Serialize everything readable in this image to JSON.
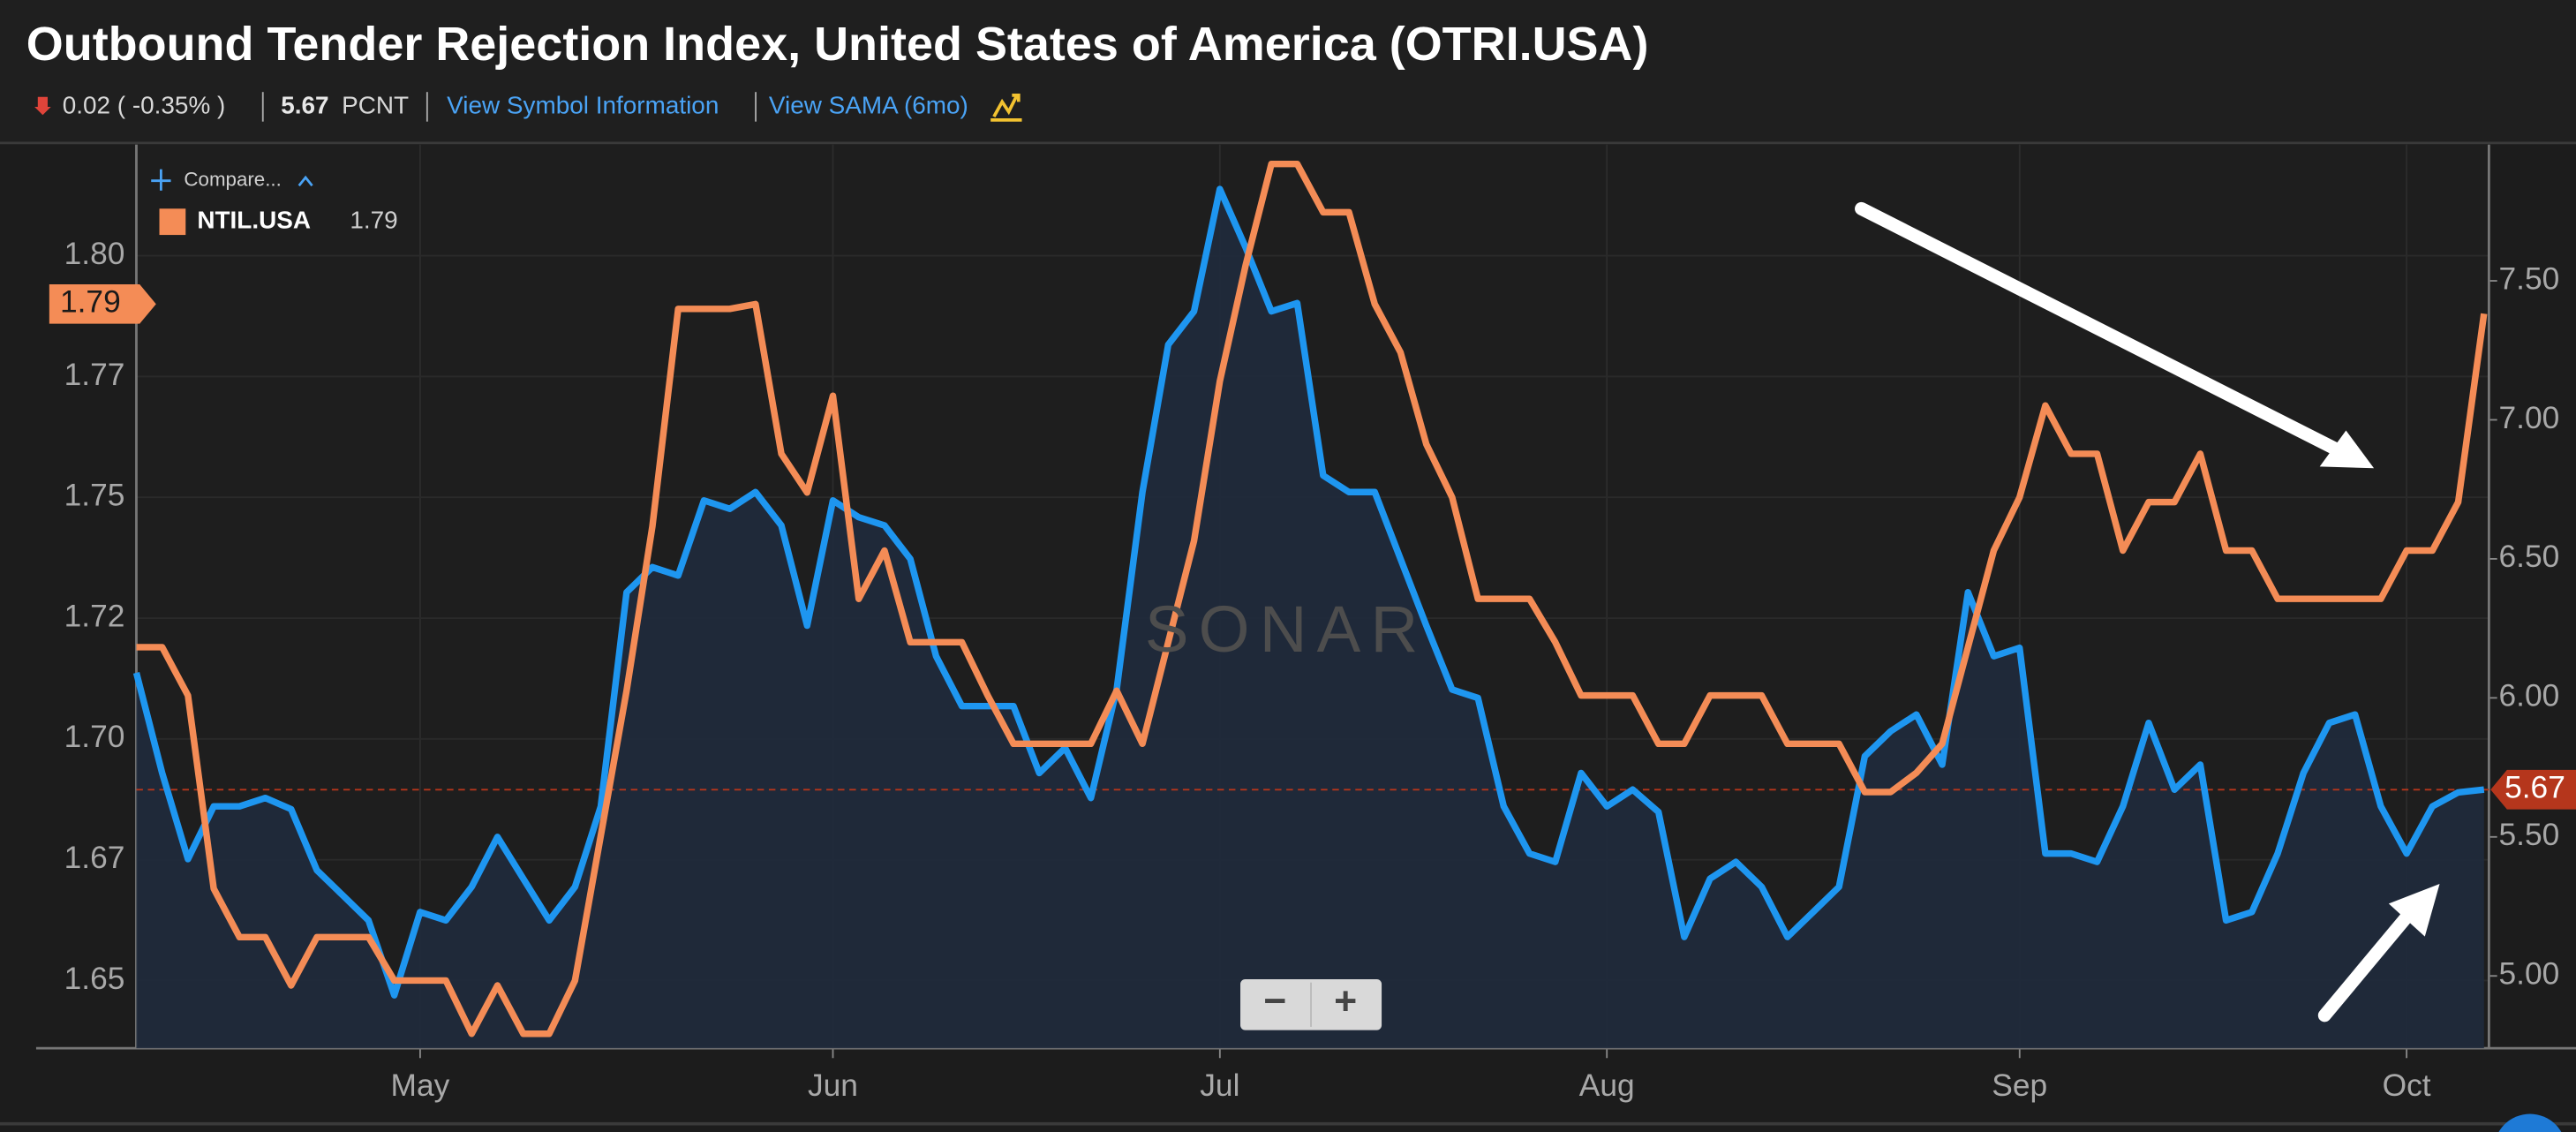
{
  "chart_data": {
    "type": "line",
    "title": "Outbound Tender Rejection Index, United States of America (OTRI.USA)",
    "categories": [
      null,
      null,
      null,
      null,
      null,
      null,
      null,
      null,
      null,
      null,
      null,
      "May",
      null,
      null,
      null,
      null,
      null,
      null,
      null,
      null,
      null,
      null,
      null,
      null,
      null,
      null,
      null,
      "Jun",
      null,
      null,
      null,
      null,
      null,
      null,
      null,
      null,
      null,
      null,
      null,
      null,
      null,
      null,
      "Jul",
      null,
      null,
      null,
      null,
      null,
      null,
      null,
      null,
      null,
      null,
      null,
      null,
      null,
      null,
      "Aug",
      null,
      null,
      null,
      null,
      null,
      null,
      null,
      null,
      null,
      null,
      null,
      null,
      null,
      null,
      null,
      "Sep",
      null,
      null,
      null,
      null,
      null,
      null,
      null,
      null,
      null,
      null,
      null,
      null,
      null,
      null,
      "Oct",
      null,
      null,
      null
    ],
    "series": [
      {
        "color": "#1e96f0",
        "axis": "y2",
        "latest": 5.67,
        "latest_color": "#b5361c",
        "values": [
          6.09,
          5.73,
          5.42,
          5.61,
          5.61,
          5.64,
          5.6,
          5.38,
          5.29,
          5.2,
          4.93,
          5.23,
          5.2,
          5.32,
          5.5,
          5.35,
          5.2,
          5.32,
          5.61,
          6.38,
          6.47,
          6.44,
          6.71,
          6.68,
          6.74,
          6.62,
          6.26,
          6.71,
          6.65,
          6.62,
          6.5,
          6.15,
          5.97,
          5.97,
          5.97,
          5.73,
          5.82,
          5.64,
          6.03,
          6.74,
          7.27,
          7.39,
          7.83,
          7.62,
          7.39,
          7.42,
          6.8,
          6.74,
          6.74,
          6.5,
          6.26,
          6.03,
          6.0,
          5.61,
          5.44,
          5.41,
          5.73,
          5.61,
          5.67,
          5.59,
          5.14,
          5.35,
          5.41,
          5.32,
          5.14,
          5.23,
          5.32,
          5.79,
          5.88,
          5.94,
          5.76,
          6.38,
          6.15,
          6.18,
          5.44,
          5.44,
          5.41,
          5.61,
          5.91,
          5.67,
          5.76,
          5.2,
          5.23,
          5.44,
          5.73,
          5.91,
          5.94,
          5.61,
          5.44,
          5.61,
          5.66,
          5.67
        ]
      },
      {
        "name": "NTIL.USA",
        "color": "#f48c56",
        "axis": "y",
        "latest": 1.79,
        "values": [
          1.719,
          1.719,
          1.709,
          1.669,
          1.659,
          1.659,
          1.649,
          1.659,
          1.659,
          1.659,
          1.65,
          1.65,
          1.65,
          1.639,
          1.649,
          1.639,
          1.639,
          1.65,
          1.68,
          1.71,
          1.744,
          1.789,
          1.789,
          1.789,
          1.79,
          1.759,
          1.751,
          1.771,
          1.729,
          1.739,
          1.72,
          1.72,
          1.72,
          1.709,
          1.699,
          1.699,
          1.699,
          1.699,
          1.71,
          1.699,
          1.72,
          1.741,
          1.774,
          1.798,
          1.819,
          1.819,
          1.809,
          1.809,
          1.79,
          1.78,
          1.761,
          1.75,
          1.729,
          1.729,
          1.729,
          1.72,
          1.709,
          1.709,
          1.709,
          1.699,
          1.699,
          1.709,
          1.709,
          1.709,
          1.699,
          1.699,
          1.699,
          1.689,
          1.689,
          1.693,
          1.699,
          1.719,
          1.739,
          1.75,
          1.769,
          1.759,
          1.759,
          1.739,
          1.749,
          1.749,
          1.759,
          1.739,
          1.739,
          1.729,
          1.729,
          1.729,
          1.729,
          1.729,
          1.739,
          1.739,
          1.749,
          1.788
        ]
      }
    ],
    "ylim": [
      1.636,
      1.823
    ],
    "yticks": [
      1.65,
      {
        "value": 1.675,
        "label": "1.67"
      },
      {
        "value": 1.7,
        "label": "1.70"
      },
      {
        "value": 1.725,
        "label": "1.72"
      },
      1.75,
      {
        "value": 1.775,
        "label": "1.77"
      },
      {
        "value": 1.8,
        "label": "1.80"
      }
    ],
    "y2lim": [
      4.74,
      7.99
    ],
    "y2ticks": [
      {
        "value": 5,
        "label": "5.00"
      },
      {
        "value": 5.5,
        "label": "5.50"
      },
      {
        "value": 6,
        "label": "6.00"
      },
      {
        "value": 6.5,
        "label": "6.50"
      },
      {
        "value": 7,
        "label": "7.00"
      },
      {
        "value": 7.5,
        "label": "7.50"
      }
    ],
    "area_fill": "#1f2a3c",
    "grid": true
  },
  "header": {
    "change": "0.02 ( -0.35% )",
    "unit": "PCNT",
    "links": [
      "View Symbol Information",
      "View SAMA (6mo)"
    ]
  },
  "compare": "Compare...",
  "watermark": "SONAR",
  "controls": {
    "zoom_out": "−",
    "zoom_in": "+"
  }
}
